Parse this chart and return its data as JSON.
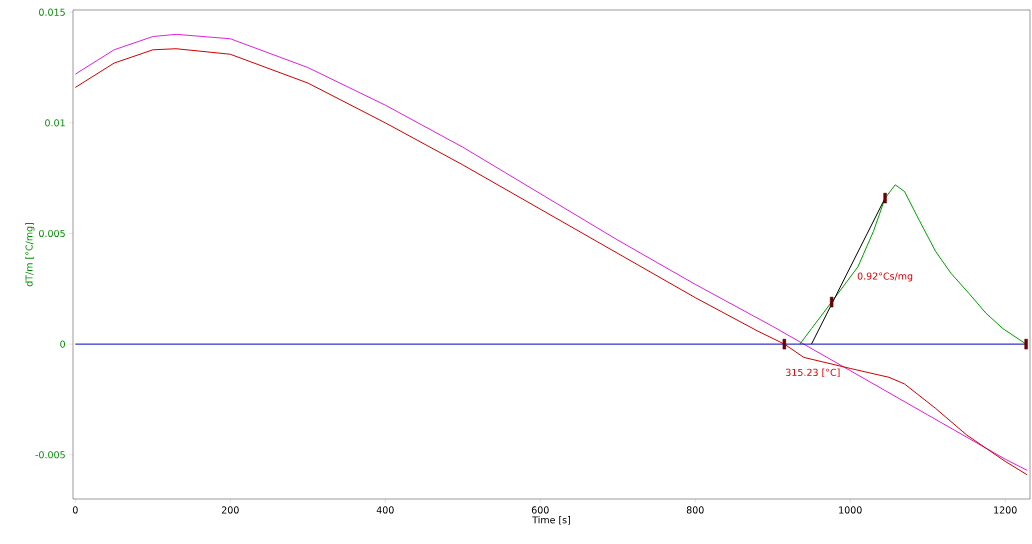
{
  "chart_data": {
    "type": "line",
    "xlabel": "Time [s]",
    "ylabel": "dT/m  [°C/mg]",
    "xlim": [
      -3,
      1232
    ],
    "ylim": [
      -0.007,
      0.0151
    ],
    "xticks": [
      0,
      200,
      400,
      600,
      800,
      1000,
      1200
    ],
    "yticks": [
      {
        "value": -0.005,
        "label": "-0.005"
      },
      {
        "value": 0,
        "label": "0"
      },
      {
        "value": 0.005,
        "label": "0.005"
      },
      {
        "value": 0.01,
        "label": "0.01"
      },
      {
        "value": 0.015,
        "label": "0.015"
      }
    ],
    "grid": false,
    "series": [
      {
        "color": "#e020e0",
        "x": [
          0,
          50,
          100,
          130,
          200,
          300,
          400,
          500,
          600,
          700,
          800,
          900,
          1000,
          1100,
          1200,
          1228
        ],
        "values": [
          0.0122,
          0.0133,
          0.0139,
          0.014,
          0.0138,
          0.0125,
          0.0108,
          0.0089,
          0.0068,
          0.0047,
          0.0027,
          0.0008,
          -0.0012,
          -0.0032,
          -0.0052,
          -0.0057
        ]
      },
      {
        "color": "#d00000",
        "x": [
          0,
          50,
          100,
          130,
          200,
          300,
          400,
          500,
          600,
          700,
          800,
          880,
          915,
          940,
          1000,
          1050,
          1070,
          1110,
          1150,
          1200,
          1228
        ],
        "values": [
          0.0116,
          0.0127,
          0.0133,
          0.01335,
          0.0131,
          0.0118,
          0.01,
          0.0081,
          0.0061,
          0.0041,
          0.0021,
          0.0006,
          0,
          -0.0006,
          -0.0011,
          -0.0015,
          -0.0018,
          -0.0029,
          -0.0041,
          -0.0053,
          -0.0059
        ]
      },
      {
        "color": "#00a000",
        "x": [
          935,
          950,
          976,
          1010,
          1030,
          1045,
          1058,
          1070,
          1089,
          1110,
          1130,
          1153,
          1175,
          1197,
          1227
        ],
        "values": [
          0,
          0.0007,
          0.0019,
          0.0035,
          0.0051,
          0.0066,
          0.0072,
          0.0069,
          0.0056,
          0.0042,
          0.0032,
          0.0023,
          0.0014,
          0.0007,
          0
        ]
      },
      {
        "color": "#0000c0",
        "x": [
          0,
          1227
        ],
        "values": [
          0,
          0
        ]
      },
      {
        "color": "#000000",
        "x": [
          950,
          1045
        ],
        "values": [
          0,
          0.0066
        ]
      },
      {
        "type": "scatter",
        "marker": "square",
        "color": "#6b0000",
        "x": [
          915,
          976,
          1045,
          1227
        ],
        "values": [
          0,
          0.0019,
          0.0066,
          0
        ]
      }
    ],
    "annotations": [
      "0.92°Cs/mg",
      "315.23 [°C]"
    ]
  }
}
